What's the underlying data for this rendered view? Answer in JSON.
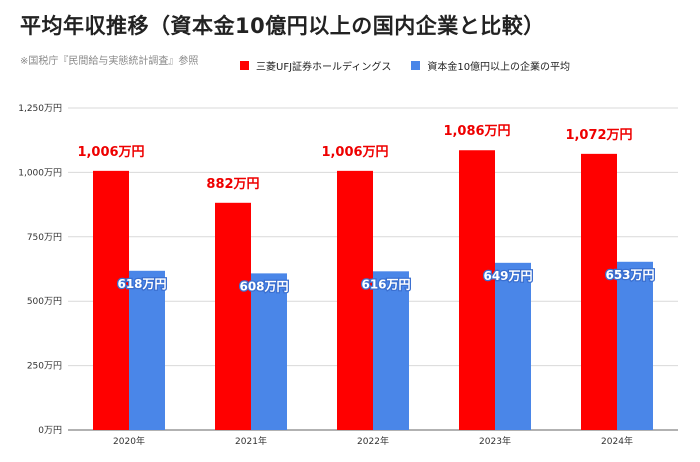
{
  "header": {
    "title": "平均年収推移（資本金10億円以上の国内企業と比較）",
    "source": "※国税庁『民間給与実態統計調査』参照"
  },
  "colors": {
    "series_0": "#ff0000",
    "series_1": "#4a86e8",
    "grid": "#d9d9d9",
    "red_label": "#ee0000"
  },
  "chart_data": {
    "type": "bar",
    "categories": [
      "2020年",
      "2021年",
      "2022年",
      "2023年",
      "2024年"
    ],
    "series": [
      {
        "name": "三菱UFJ証券ホールディングス",
        "values": [
          1006,
          882,
          1006,
          1086,
          1072
        ]
      },
      {
        "name": "資本金10億円以上の企業の平均",
        "values": [
          618,
          608,
          616,
          649,
          653
        ]
      }
    ],
    "data_labels": [
      [
        "1,006万円",
        "882万円",
        "1,006万円",
        "1,086万円",
        "1,072万円"
      ],
      [
        "618万円",
        "608万円",
        "616万円",
        "649万円",
        "653万円"
      ]
    ],
    "y_ticks": [
      0,
      250,
      500,
      750,
      1000,
      1250
    ],
    "y_tick_labels": [
      "0万円",
      "250万円",
      "500万円",
      "750万円",
      "1,000万円",
      "1,250万円"
    ],
    "ylim": [
      0,
      1250
    ],
    "grid": true,
    "legend": "top-center"
  }
}
